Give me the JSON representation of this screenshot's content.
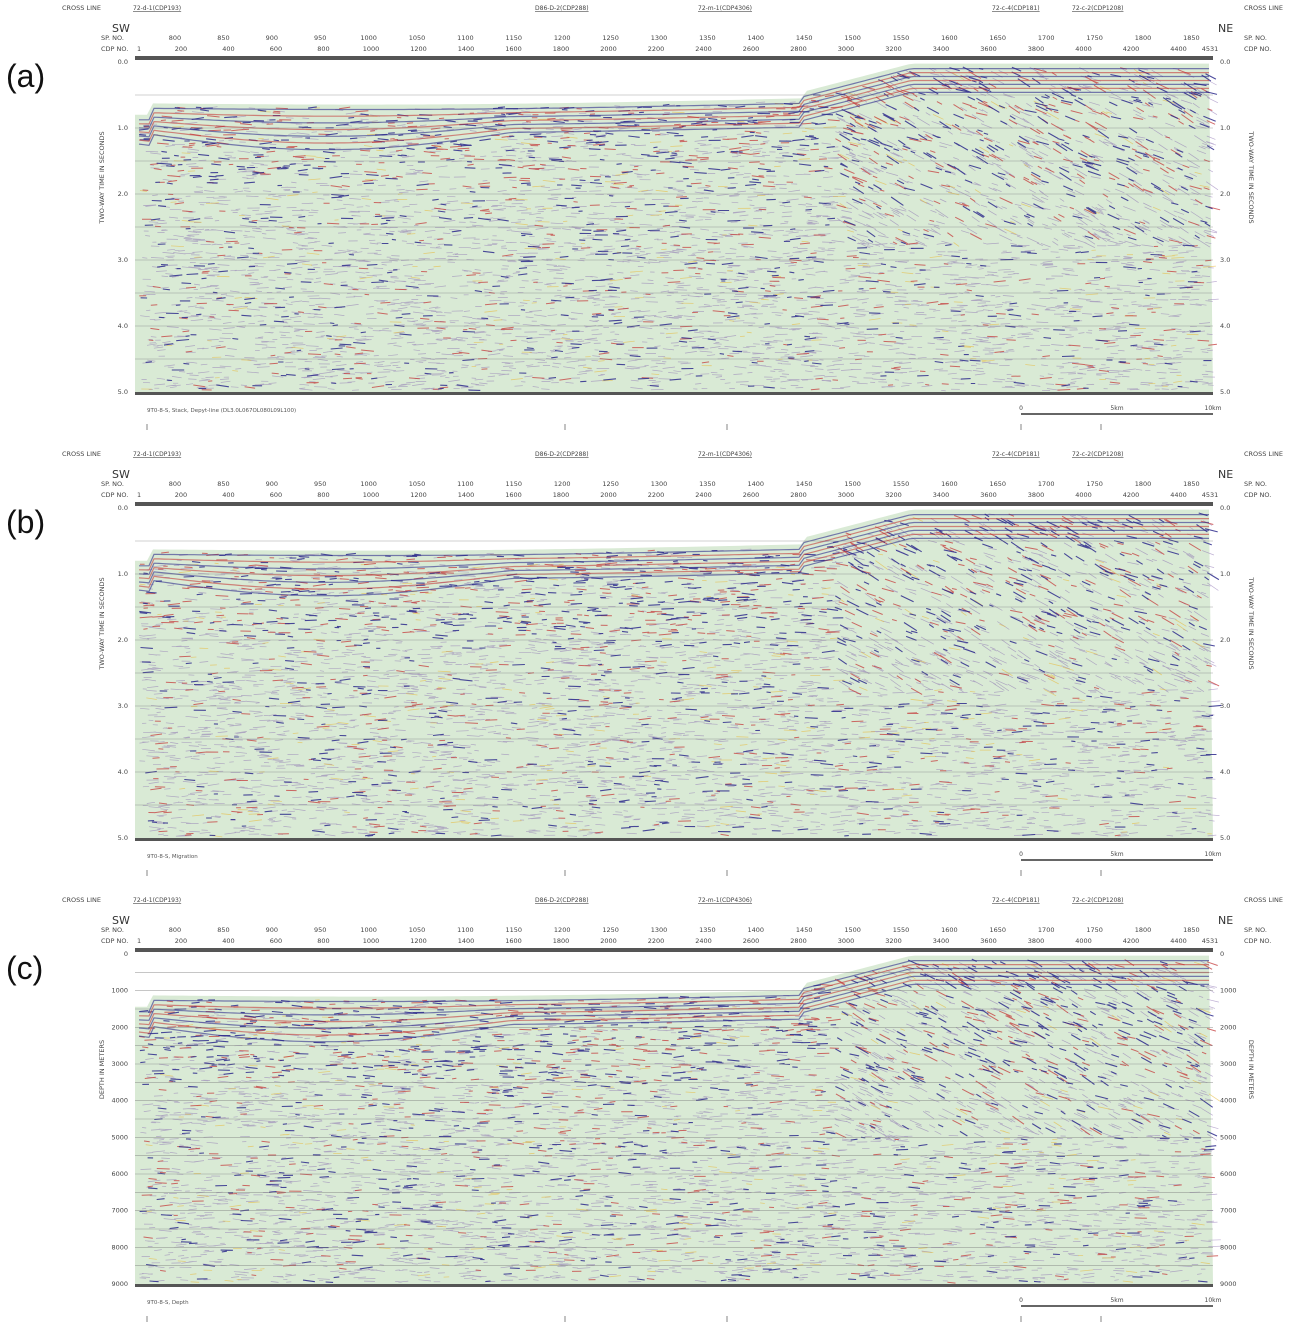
{
  "figure": {
    "panels": [
      {
        "letter": "(a)",
        "axis_title": "TWO-WAY TIME IN SECONDS",
        "y_ticks": [
          "0.0",
          "1.0",
          "2.0",
          "3.0",
          "4.0",
          "5.0"
        ],
        "caption": "9T0-8-S, Stack, Depyt-line (DL3.0L067OL080L09L100)",
        "seed": 11
      },
      {
        "letter": "(b)",
        "axis_title": "TWO-WAY TIME IN SECONDS",
        "y_ticks": [
          "0.0",
          "1.0",
          "2.0",
          "3.0",
          "4.0",
          "5.0"
        ],
        "caption": "9T0-8-S, Migration",
        "seed": 23
      },
      {
        "letter": "(c)",
        "axis_title": "DEPTH IN METERS",
        "y_ticks": [
          "0",
          "1000",
          "2000",
          "3000",
          "4000",
          "5000",
          "6000",
          "7000",
          "8000",
          "9000"
        ],
        "caption": "9T0-8-S, Depth",
        "seed": 37
      }
    ],
    "header": {
      "cross_line": "CROSS LINE",
      "sp_no": "SP. NO.",
      "cdp_no": "CDP NO.",
      "sw": "SW",
      "ne": "NE",
      "cross_line_ties": [
        "72-d-1(CDP193)",
        "D86-D-2(CDP288)",
        "72-m-1(CDP4306)",
        "72-c-4(CDP181)",
        "72-c-2(CDP1208)"
      ],
      "sp_labels": [
        "800",
        "850",
        "900",
        "950",
        "1000",
        "1050",
        "1100",
        "1150",
        "1200",
        "1250",
        "1300",
        "1350",
        "1400",
        "1450",
        "1500",
        "1550",
        "1600",
        "1650",
        "1700",
        "1750",
        "1800",
        "1850"
      ],
      "cdp_first": "1",
      "cdp_labels": [
        "200",
        "400",
        "600",
        "800",
        "1000",
        "1200",
        "1400",
        "1600",
        "1800",
        "2000",
        "2200",
        "2400",
        "2600",
        "2800",
        "3000",
        "3200",
        "3400",
        "3600",
        "3800",
        "4000",
        "4200",
        "4400"
      ],
      "cdp_last": "4531"
    },
    "scale_bar": {
      "start": "0",
      "mid": "5km",
      "end": "10km"
    },
    "colors": {
      "background": "#d9ead5",
      "positive": "#2d2a8c",
      "negative": "#c43b3b",
      "mid": "#8a6fb0",
      "accent": "#e8b93a"
    }
  }
}
